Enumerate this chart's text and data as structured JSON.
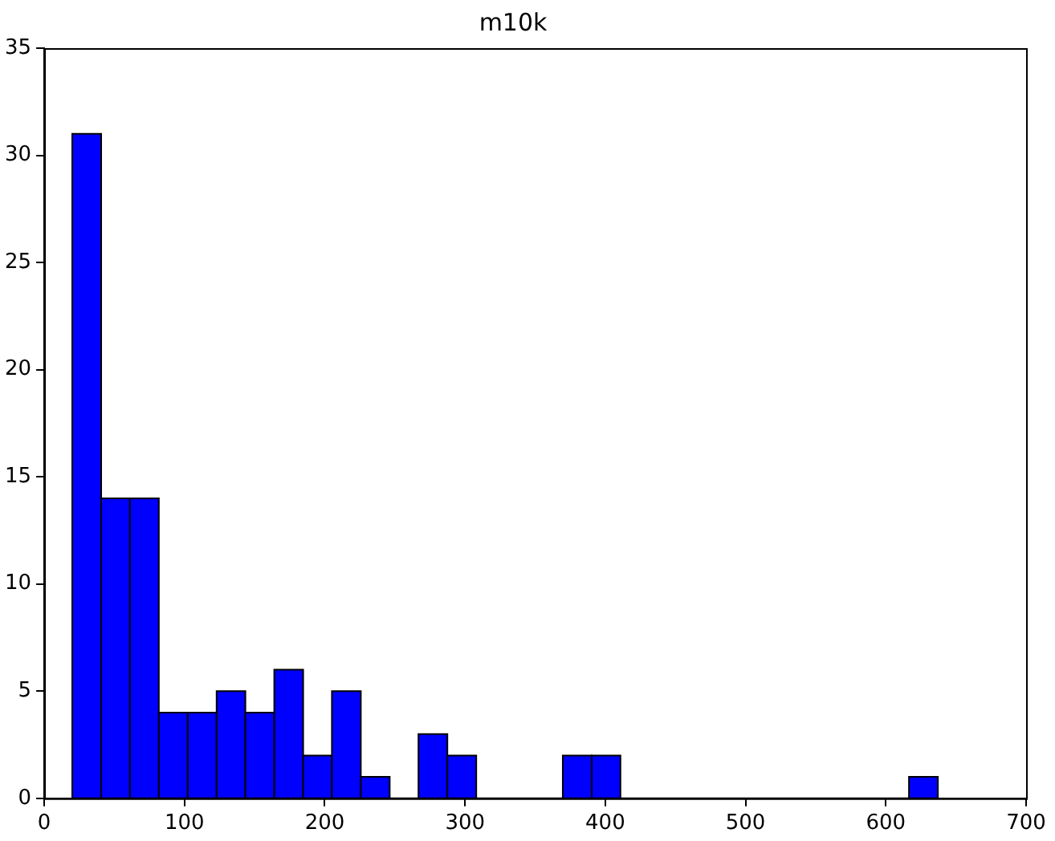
{
  "chart_data": {
    "type": "histogram",
    "title": "m10k",
    "bins": [
      20,
      40.6,
      61.1,
      81.7,
      102.3,
      122.9,
      143.4,
      164,
      184.6,
      205.1,
      225.7,
      246.3,
      266.8,
      287.4,
      308,
      328.6,
      349.1,
      369.7,
      390.3,
      410.8,
      431.4,
      452,
      472.5,
      493.1,
      513.7,
      534.3,
      554.8,
      575.4,
      596,
      616.5,
      637.1
    ],
    "values": [
      31,
      14,
      14,
      4,
      4,
      5,
      4,
      6,
      2,
      5,
      1,
      0,
      3,
      2,
      0,
      0,
      0,
      2,
      2,
      0,
      0,
      0,
      0,
      0,
      0,
      0,
      0,
      0,
      0,
      1
    ],
    "color": "#0000ff",
    "xlim": [
      0,
      700
    ],
    "xticks": [
      0,
      100,
      200,
      300,
      400,
      500,
      600,
      700
    ],
    "ylim": [
      0,
      35
    ],
    "yticks": [
      0,
      5,
      10,
      15,
      20,
      25,
      30,
      35
    ],
    "grid": false,
    "legend": false
  }
}
